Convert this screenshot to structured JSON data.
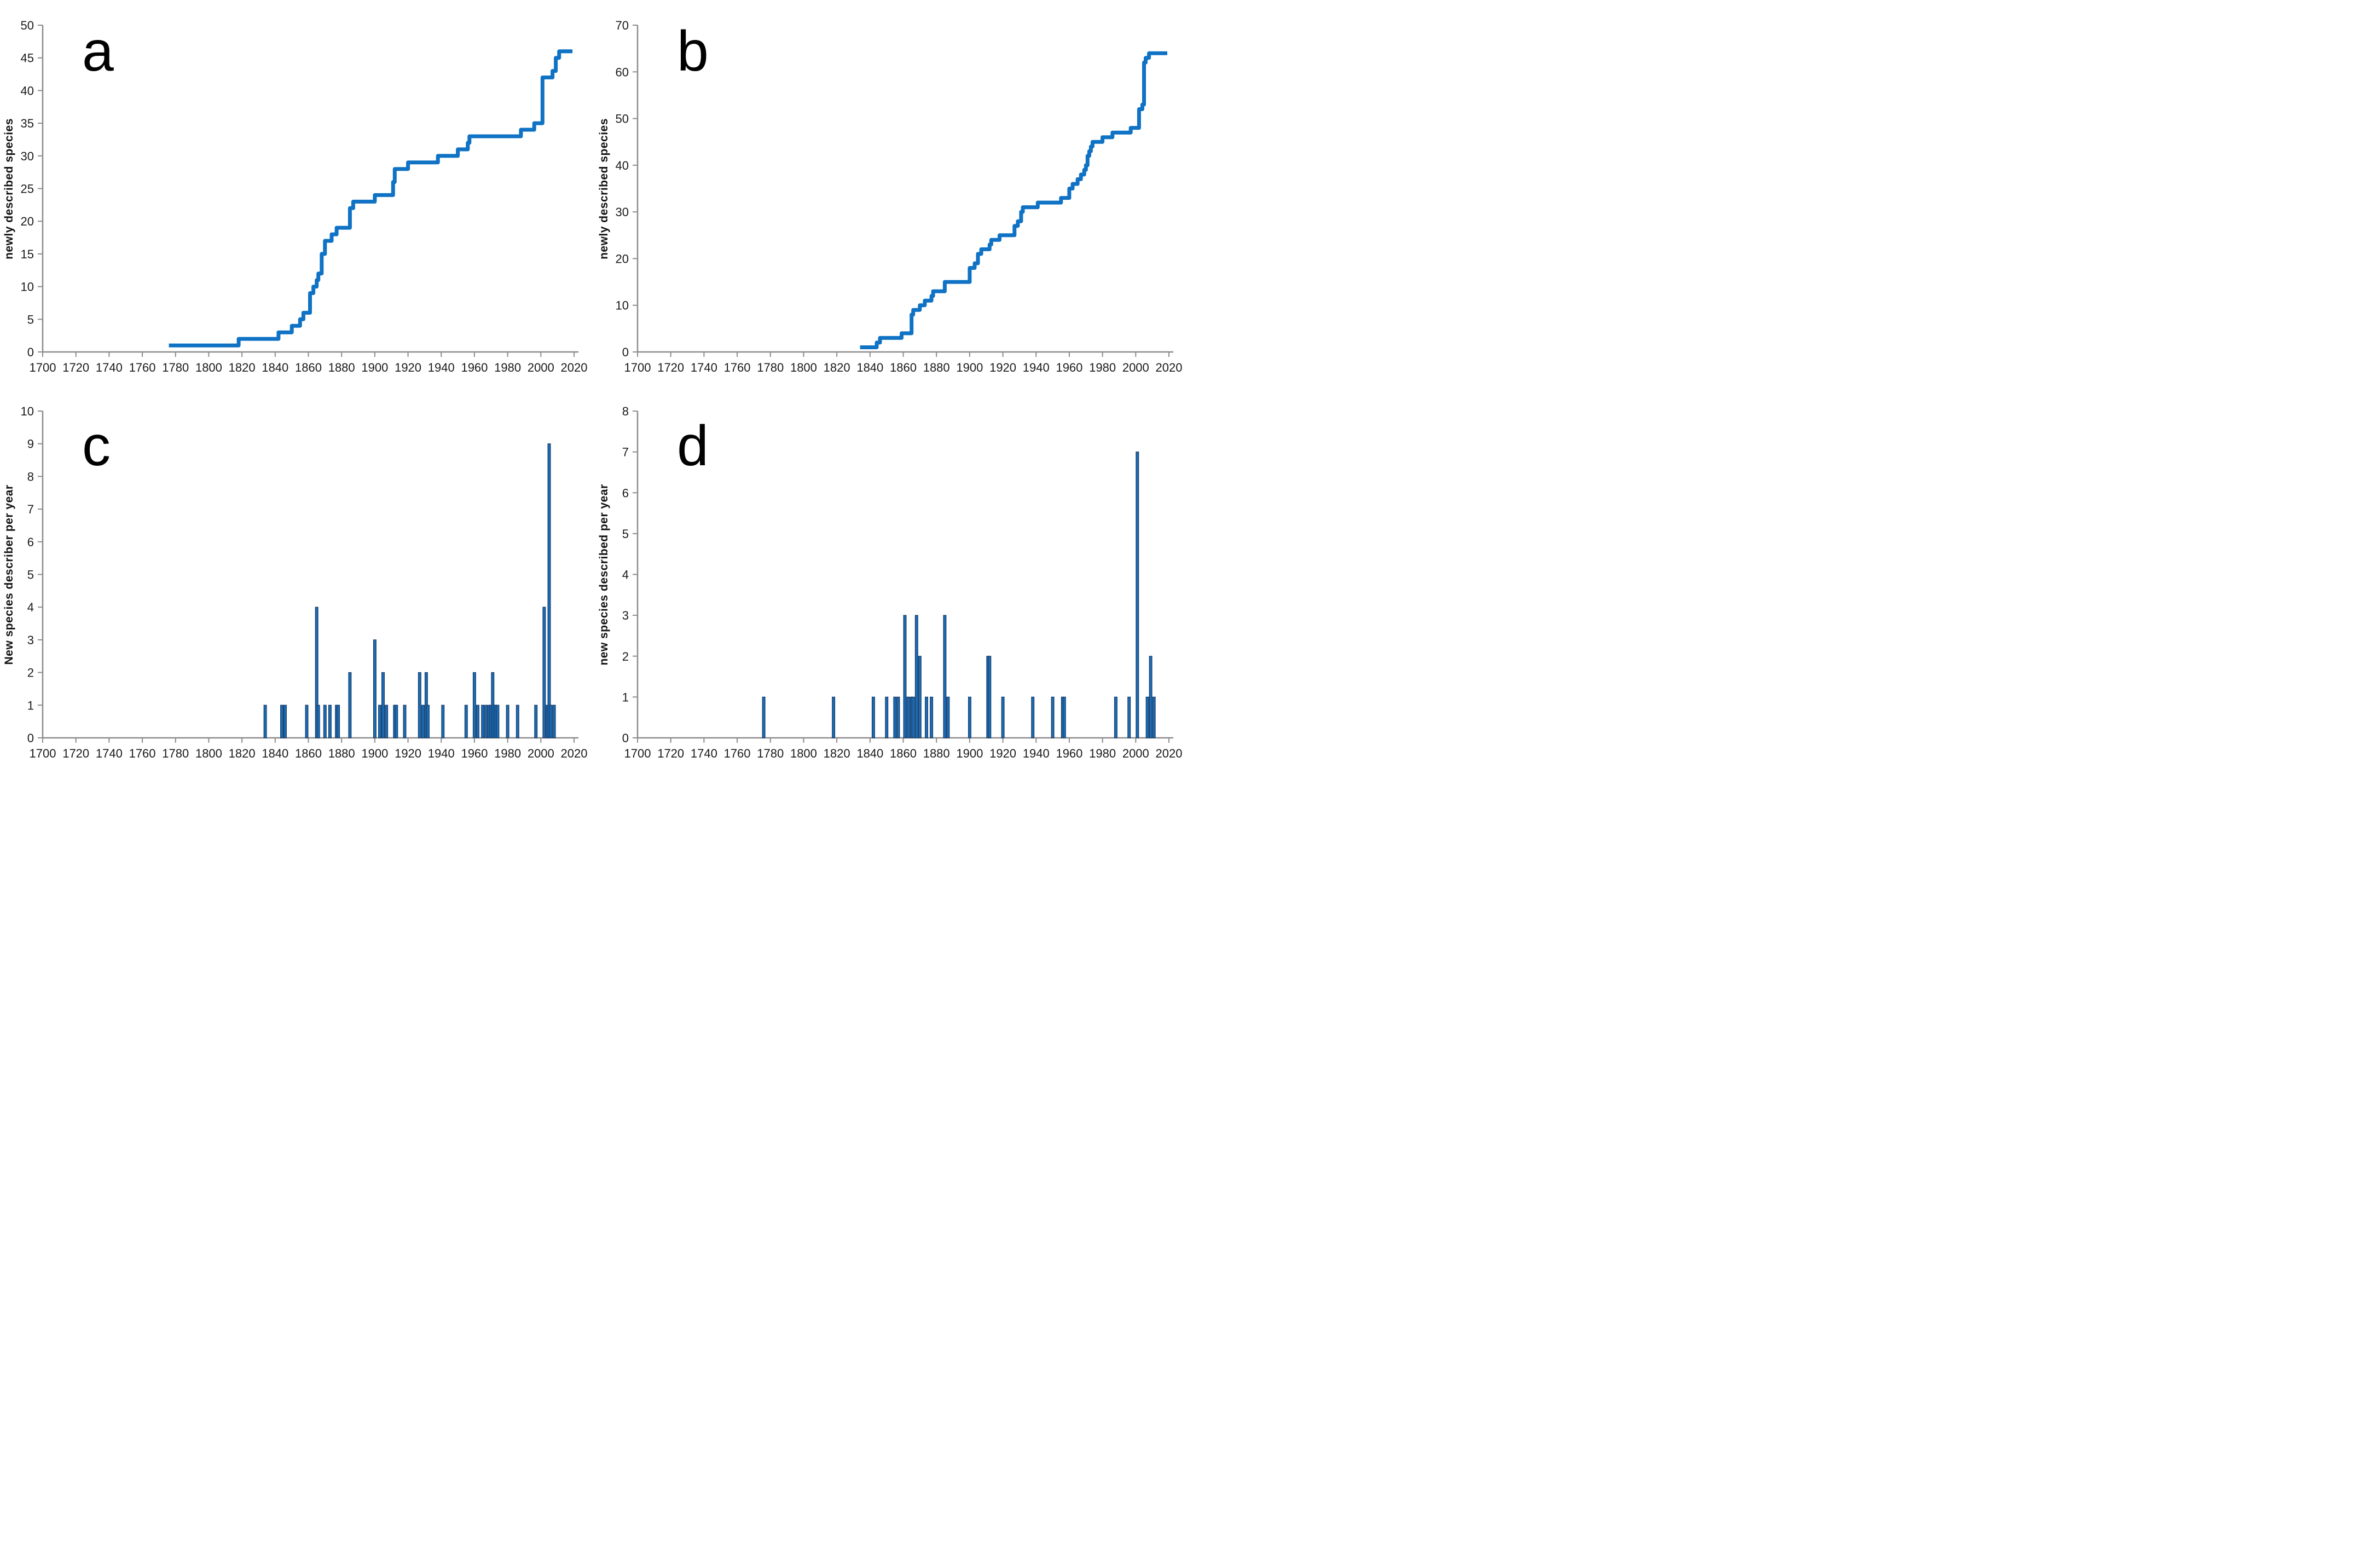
{
  "figure": {
    "background": "#ffffff",
    "rows": 2,
    "cols": 2
  },
  "colors": {
    "series_blue": "#0f72c4",
    "bar_fill": "#1b6cb5",
    "bar_stroke": "#16365f",
    "axis": "#8c8c8c",
    "tick_text": "#1a1a1a",
    "letter": "#000000"
  },
  "chart_data": [
    {
      "id": "a",
      "panel_label": "a",
      "type": "line",
      "line_style": "cumulative-step",
      "title": "",
      "xlabel": "",
      "ylabel": "newly described species",
      "xlim": [
        1700,
        2020
      ],
      "xticks": [
        1700,
        1720,
        1740,
        1760,
        1780,
        1800,
        1820,
        1840,
        1860,
        1880,
        1900,
        1920,
        1940,
        1960,
        1980,
        2000,
        2020
      ],
      "ylim": [
        0,
        50
      ],
      "yticks": [
        0,
        5,
        10,
        15,
        20,
        25,
        30,
        35,
        40,
        45,
        50
      ],
      "grid": false,
      "legend": null,
      "points": [
        [
          1776,
          1
        ],
        [
          1818,
          2
        ],
        [
          1842,
          3
        ],
        [
          1850,
          4
        ],
        [
          1855,
          5
        ],
        [
          1857,
          6
        ],
        [
          1861,
          9
        ],
        [
          1863,
          10
        ],
        [
          1865,
          11
        ],
        [
          1866,
          12
        ],
        [
          1868,
          15
        ],
        [
          1870,
          17
        ],
        [
          1874,
          18
        ],
        [
          1877,
          19
        ],
        [
          1885,
          22
        ],
        [
          1887,
          23
        ],
        [
          1900,
          24
        ],
        [
          1911,
          26
        ],
        [
          1912,
          28
        ],
        [
          1920,
          29
        ],
        [
          1938,
          30
        ],
        [
          1950,
          31
        ],
        [
          1956,
          32
        ],
        [
          1957,
          33
        ],
        [
          1988,
          34
        ],
        [
          1996,
          35
        ],
        [
          2001,
          42
        ],
        [
          2007,
          43
        ],
        [
          2009,
          45
        ],
        [
          2011,
          46
        ]
      ],
      "line_end_year": 2019
    },
    {
      "id": "b",
      "panel_label": "b",
      "type": "line",
      "line_style": "cumulative-step",
      "title": "",
      "xlabel": "",
      "ylabel": "newly described species",
      "xlim": [
        1700,
        2020
      ],
      "xticks": [
        1700,
        1720,
        1740,
        1760,
        1780,
        1800,
        1820,
        1840,
        1860,
        1880,
        1900,
        1920,
        1940,
        1960,
        1980,
        2000,
        2020
      ],
      "ylim": [
        0,
        70
      ],
      "yticks": [
        0,
        10,
        20,
        30,
        40,
        50,
        60,
        70
      ],
      "grid": false,
      "legend": null,
      "points": [
        [
          1834,
          1
        ],
        [
          1844,
          2
        ],
        [
          1846,
          3
        ],
        [
          1859,
          4
        ],
        [
          1865,
          8
        ],
        [
          1866,
          9
        ],
        [
          1870,
          10
        ],
        [
          1873,
          11
        ],
        [
          1877,
          12
        ],
        [
          1878,
          13
        ],
        [
          1885,
          15
        ],
        [
          1900,
          18
        ],
        [
          1903,
          19
        ],
        [
          1905,
          21
        ],
        [
          1907,
          22
        ],
        [
          1912,
          23
        ],
        [
          1913,
          24
        ],
        [
          1918,
          25
        ],
        [
          1927,
          27
        ],
        [
          1929,
          28
        ],
        [
          1931,
          30
        ],
        [
          1932,
          31
        ],
        [
          1941,
          32
        ],
        [
          1955,
          33
        ],
        [
          1960,
          35
        ],
        [
          1962,
          36
        ],
        [
          1965,
          37
        ],
        [
          1967,
          38
        ],
        [
          1969,
          39
        ],
        [
          1970,
          40
        ],
        [
          1971,
          42
        ],
        [
          1972,
          43
        ],
        [
          1973,
          44
        ],
        [
          1974,
          45
        ],
        [
          1980,
          46
        ],
        [
          1986,
          47
        ],
        [
          1997,
          48
        ],
        [
          2002,
          52
        ],
        [
          2004,
          53
        ],
        [
          2005,
          62
        ],
        [
          2006,
          63
        ],
        [
          2008,
          64
        ]
      ],
      "line_end_year": 2019
    },
    {
      "id": "c",
      "panel_label": "c",
      "type": "bar",
      "title": "",
      "xlabel": "",
      "ylabel": "New species describer per year",
      "xlim": [
        1700,
        2020
      ],
      "xticks": [
        1700,
        1720,
        1740,
        1760,
        1780,
        1800,
        1820,
        1840,
        1860,
        1880,
        1900,
        1920,
        1940,
        1960,
        1980,
        2000,
        2020
      ],
      "ylim": [
        0,
        10
      ],
      "yticks": [
        0,
        1,
        2,
        3,
        4,
        5,
        6,
        7,
        8,
        9,
        10
      ],
      "grid": false,
      "legend": null,
      "bars": [
        [
          1834,
          1
        ],
        [
          1844,
          1
        ],
        [
          1846,
          1
        ],
        [
          1859,
          1
        ],
        [
          1865,
          4
        ],
        [
          1866,
          1
        ],
        [
          1870,
          1
        ],
        [
          1873,
          1
        ],
        [
          1877,
          1
        ],
        [
          1878,
          1
        ],
        [
          1885,
          2
        ],
        [
          1900,
          3
        ],
        [
          1903,
          1
        ],
        [
          1905,
          2
        ],
        [
          1907,
          1
        ],
        [
          1912,
          1
        ],
        [
          1913,
          1
        ],
        [
          1918,
          1
        ],
        [
          1927,
          2
        ],
        [
          1929,
          1
        ],
        [
          1931,
          2
        ],
        [
          1932,
          1
        ],
        [
          1941,
          1
        ],
        [
          1955,
          1
        ],
        [
          1960,
          2
        ],
        [
          1962,
          1
        ],
        [
          1965,
          1
        ],
        [
          1967,
          1
        ],
        [
          1969,
          1
        ],
        [
          1970,
          1
        ],
        [
          1971,
          2
        ],
        [
          1972,
          1
        ],
        [
          1973,
          1
        ],
        [
          1974,
          1
        ],
        [
          1980,
          1
        ],
        [
          1986,
          1
        ],
        [
          1997,
          1
        ],
        [
          2002,
          4
        ],
        [
          2004,
          1
        ],
        [
          2005,
          9
        ],
        [
          2006,
          1
        ],
        [
          2008,
          1
        ]
      ]
    },
    {
      "id": "d",
      "panel_label": "d",
      "type": "bar",
      "title": "",
      "xlabel": "",
      "ylabel": "new species described per year",
      "xlim": [
        1700,
        2020
      ],
      "xticks": [
        1700,
        1720,
        1740,
        1760,
        1780,
        1800,
        1820,
        1840,
        1860,
        1880,
        1900,
        1920,
        1940,
        1960,
        1980,
        2000,
        2020
      ],
      "ylim": [
        0,
        8
      ],
      "yticks": [
        0,
        1,
        2,
        3,
        4,
        5,
        6,
        7,
        8
      ],
      "grid": false,
      "legend": null,
      "bars": [
        [
          1776,
          1
        ],
        [
          1818,
          1
        ],
        [
          1842,
          1
        ],
        [
          1850,
          1
        ],
        [
          1855,
          1
        ],
        [
          1857,
          1
        ],
        [
          1861,
          3
        ],
        [
          1863,
          1
        ],
        [
          1865,
          1
        ],
        [
          1866,
          1
        ],
        [
          1868,
          3
        ],
        [
          1870,
          2
        ],
        [
          1874,
          1
        ],
        [
          1877,
          1
        ],
        [
          1885,
          3
        ],
        [
          1887,
          1
        ],
        [
          1900,
          1
        ],
        [
          1911,
          2
        ],
        [
          1912,
          2
        ],
        [
          1920,
          1
        ],
        [
          1938,
          1
        ],
        [
          1950,
          1
        ],
        [
          1956,
          1
        ],
        [
          1957,
          1
        ],
        [
          1988,
          1
        ],
        [
          1996,
          1
        ],
        [
          2001,
          7
        ],
        [
          2007,
          1
        ],
        [
          2009,
          2
        ],
        [
          2011,
          1
        ]
      ]
    }
  ]
}
